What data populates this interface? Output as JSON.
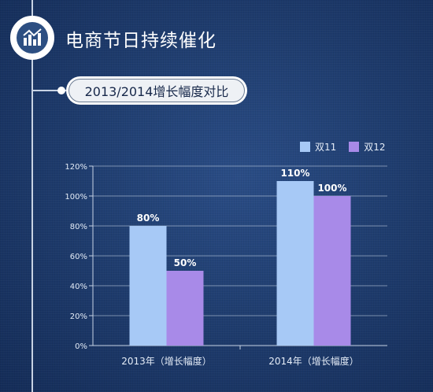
{
  "header": {
    "title": "电商节日持续催化",
    "logo_icon": "bar-chart-trend-icon",
    "subtitle": "2013/2014增长幅度对比"
  },
  "colors": {
    "series_1": "#a7c9f6",
    "series_2": "#a88ae8",
    "axis": "#c7d3e4",
    "text": "#e4ecf7"
  },
  "chart_data": {
    "type": "bar",
    "title": "2013/2014增长幅度对比",
    "categories": [
      "2013年（增长幅度）",
      "2014年（增长幅度）"
    ],
    "series": [
      {
        "name": "双11",
        "values": [
          80,
          110
        ],
        "labels": [
          "80%",
          "110%"
        ]
      },
      {
        "name": "双12",
        "values": [
          50,
          100
        ],
        "labels": [
          "50%",
          "100%"
        ]
      }
    ],
    "ylim": [
      0,
      120
    ],
    "yticks": [
      "0%",
      "20%",
      "40%",
      "60%",
      "80%",
      "100%",
      "120%"
    ],
    "unit": "%",
    "grid": "y-major",
    "legend_position": "top-right"
  }
}
